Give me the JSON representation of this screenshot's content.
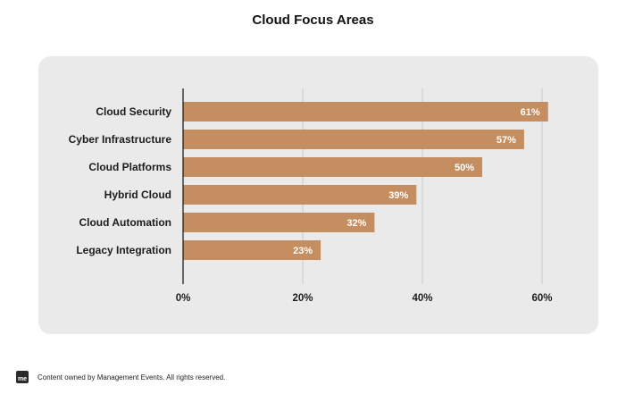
{
  "page": {
    "footer_logo": "me",
    "footer_text": "Content owned by Management Events. All rights reserved."
  },
  "colors": {
    "bar": "#c48e60",
    "panel": "#e9eae9",
    "grid": "#c9cac9",
    "axis": "#111111",
    "data_label": "#ffffff"
  },
  "chart_data": {
    "type": "bar",
    "orientation": "horizontal",
    "title": "Cloud Focus Areas",
    "categories": [
      "Cloud Security",
      "Cyber Infrastructure",
      "Cloud Platforms",
      "Hybrid Cloud",
      "Cloud Automation",
      "Legacy Integration"
    ],
    "values": [
      61,
      57,
      50,
      39,
      32,
      23
    ],
    "value_labels": [
      "61%",
      "57%",
      "50%",
      "39%",
      "32%",
      "23%"
    ],
    "xlim": [
      0,
      60
    ],
    "xticks": [
      0,
      20,
      40,
      60
    ],
    "xtick_labels": [
      "0%",
      "20%",
      "40%",
      "60%"
    ],
    "grid": true,
    "legend": "none"
  }
}
